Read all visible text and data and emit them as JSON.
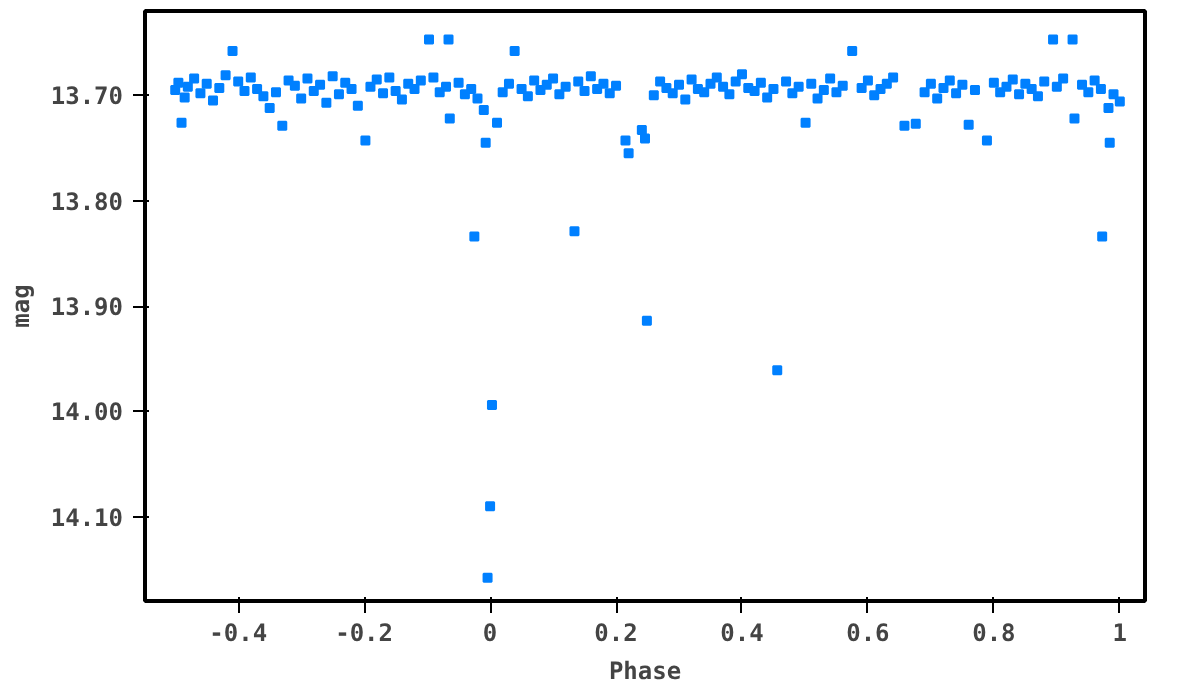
{
  "chart_data": {
    "type": "scatter",
    "xlabel": "Phase",
    "ylabel": "mag",
    "xlim": [
      -0.548,
      1.04
    ],
    "ylim": [
      14.18,
      13.62
    ],
    "xticks": [
      -0.4,
      -0.2,
      0,
      0.2,
      0.4,
      0.6,
      0.8,
      1
    ],
    "yticks": [
      {
        "value": 13.7,
        "label": "13.70"
      },
      {
        "value": 13.8,
        "label": "13.80"
      },
      {
        "value": 13.9,
        "label": "13.90"
      },
      {
        "value": 14.0,
        "label": "14.00"
      },
      {
        "value": 14.1,
        "label": "14.10"
      }
    ],
    "grid": false,
    "marker": "square",
    "series": [
      {
        "color": "#0080ff",
        "x": [
          -0.5,
          -0.495,
          -0.49,
          -0.485,
          -0.48,
          -0.47,
          -0.46,
          -0.45,
          -0.44,
          -0.43,
          -0.42,
          -0.409,
          -0.4,
          -0.39,
          -0.38,
          -0.37,
          -0.36,
          -0.35,
          -0.34,
          -0.33,
          -0.32,
          -0.31,
          -0.3,
          -0.29,
          -0.28,
          -0.27,
          -0.26,
          -0.25,
          -0.24,
          -0.23,
          -0.22,
          -0.21,
          -0.198,
          -0.19,
          -0.18,
          -0.17,
          -0.16,
          -0.15,
          -0.14,
          -0.13,
          -0.12,
          -0.11,
          -0.097,
          -0.09,
          -0.08,
          -0.07,
          -0.066,
          -0.064,
          -0.05,
          -0.04,
          -0.03,
          -0.02,
          -0.01,
          -0.007,
          0.011,
          0.02,
          0.03,
          0.039,
          0.05,
          0.06,
          0.07,
          0.08,
          0.09,
          0.1,
          0.11,
          0.12,
          0.14,
          0.15,
          0.16,
          0.17,
          0.18,
          0.19,
          0.2,
          0.215,
          0.22,
          0.241,
          0.246,
          0.26,
          0.27,
          0.28,
          0.29,
          0.3,
          0.31,
          0.32,
          0.33,
          0.34,
          0.35,
          0.36,
          0.37,
          0.38,
          0.39,
          0.4,
          0.41,
          0.42,
          0.43,
          0.44,
          0.45,
          0.47,
          0.48,
          0.49,
          0.501,
          0.51,
          0.52,
          0.53,
          0.54,
          0.55,
          0.56,
          0.575,
          0.59,
          0.6,
          0.61,
          0.62,
          0.63,
          0.64,
          0.658,
          0.676,
          0.69,
          0.7,
          0.71,
          0.72,
          0.73,
          0.74,
          0.75,
          0.76,
          0.77,
          0.789,
          0.8,
          0.81,
          0.82,
          0.83,
          0.84,
          0.85,
          0.86,
          0.87,
          0.88,
          0.894,
          0.9,
          0.91,
          0.925,
          0.928,
          0.94,
          0.95,
          0.96,
          0.97,
          0.982,
          0.984,
          0.99,
          1.0,
          -0.025,
          0.134,
          0.972,
          0.249,
          0.456,
          0.003,
          0.0,
          -0.004
        ],
        "values": [
          13.695,
          13.688,
          13.726,
          13.702,
          13.692,
          13.684,
          13.698,
          13.689,
          13.705,
          13.693,
          13.681,
          13.658,
          13.687,
          13.696,
          13.683,
          13.694,
          13.701,
          13.712,
          13.697,
          13.729,
          13.686,
          13.691,
          13.703,
          13.684,
          13.696,
          13.69,
          13.707,
          13.682,
          13.699,
          13.688,
          13.694,
          13.71,
          13.743,
          13.692,
          13.685,
          13.698,
          13.683,
          13.696,
          13.704,
          13.689,
          13.694,
          13.686,
          13.647,
          13.683,
          13.697,
          13.692,
          13.647,
          13.722,
          13.688,
          13.699,
          13.694,
          13.703,
          13.714,
          13.745,
          13.726,
          13.697,
          13.689,
          13.658,
          13.694,
          13.701,
          13.686,
          13.695,
          13.69,
          13.684,
          13.699,
          13.692,
          13.687,
          13.696,
          13.682,
          13.694,
          13.689,
          13.698,
          13.691,
          13.743,
          13.755,
          13.733,
          13.741,
          13.7,
          13.687,
          13.693,
          13.698,
          13.69,
          13.704,
          13.685,
          13.694,
          13.697,
          13.689,
          13.683,
          13.692,
          13.699,
          13.687,
          13.68,
          13.693,
          13.696,
          13.688,
          13.702,
          13.694,
          13.687,
          13.698,
          13.692,
          13.726,
          13.689,
          13.703,
          13.695,
          13.684,
          13.697,
          13.691,
          13.658,
          13.693,
          13.686,
          13.7,
          13.694,
          13.689,
          13.683,
          13.729,
          13.727,
          13.697,
          13.689,
          13.703,
          13.693,
          13.686,
          13.698,
          13.69,
          13.728,
          13.695,
          13.743,
          13.688,
          13.697,
          13.692,
          13.685,
          13.699,
          13.689,
          13.694,
          13.701,
          13.687,
          13.647,
          13.692,
          13.684,
          13.647,
          13.722,
          13.69,
          13.697,
          13.686,
          13.694,
          13.712,
          13.745,
          13.699,
          13.706,
          13.834,
          13.829,
          13.834,
          13.914,
          13.961,
          13.994,
          14.09,
          14.158
        ]
      }
    ]
  }
}
